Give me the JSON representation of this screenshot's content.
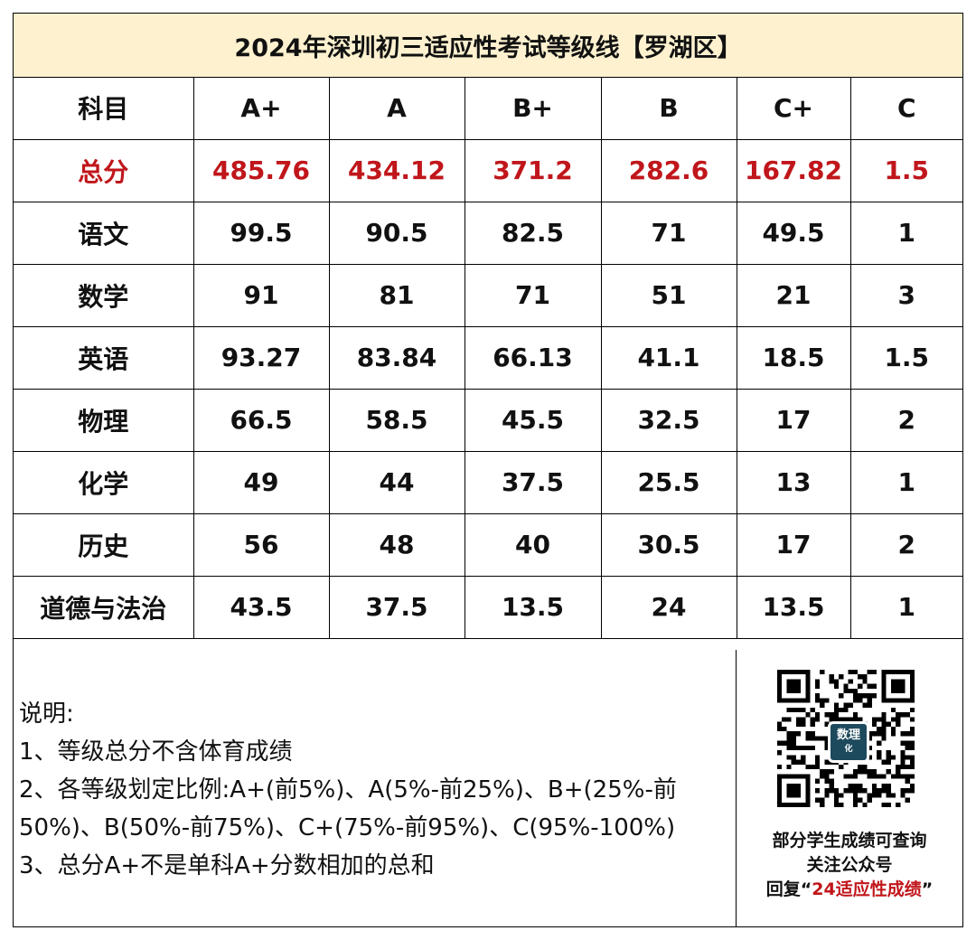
{
  "title": "2024年深圳初三适应性考试等级线【罗湖区】",
  "header": [
    "科目",
    "A+",
    "A",
    "B+",
    "B",
    "C+",
    "C"
  ],
  "rows": [
    {
      "subject": "总分",
      "values": [
        "485.76",
        "434.12",
        "371.2",
        "282.6",
        "167.82",
        "1.5"
      ],
      "highlight": true
    },
    {
      "subject": "语文",
      "values": [
        "99.5",
        "90.5",
        "82.5",
        "71",
        "49.5",
        "1"
      ]
    },
    {
      "subject": "数学",
      "values": [
        "91",
        "81",
        "71",
        "51",
        "21",
        "3"
      ]
    },
    {
      "subject": "英语",
      "values": [
        "93.27",
        "83.84",
        "66.13",
        "41.1",
        "18.5",
        "1.5"
      ]
    },
    {
      "subject": "物理",
      "values": [
        "66.5",
        "58.5",
        "45.5",
        "32.5",
        "17",
        "2"
      ]
    },
    {
      "subject": "化学",
      "values": [
        "49",
        "44",
        "37.5",
        "25.5",
        "13",
        "1"
      ]
    },
    {
      "subject": "历史",
      "values": [
        "56",
        "48",
        "40",
        "30.5",
        "17",
        "2"
      ]
    },
    {
      "subject": "道德与法治",
      "values": [
        "43.5",
        "37.5",
        "13.5",
        "24",
        "13.5",
        "1"
      ]
    }
  ],
  "notes": {
    "heading": "说明:",
    "line1": "1、等级总分不含体育成绩",
    "line2": "2、各等级划定比例:A+(前5%)、A(5%-前25%)、B+(25%-前50%)、B(50%-前75%)、C+(75%-前95%)、C(95%-100%)",
    "line3": "3、总分A+不是单科A+分数相加的总和"
  },
  "promo": {
    "line1": "部分学生成绩可查询",
    "line2": "关注公众号",
    "line3_prefix": "回复",
    "line3_quote_open": "“",
    "line3_highlight": "24适应性成绩",
    "line3_quote_close": "”",
    "qr_badge_text": "数理",
    "qr_badge_sub": "化"
  },
  "colors": {
    "title_bg": "#fdf1cf",
    "highlight": "#c0161b",
    "badge": "#1e4a5e"
  }
}
